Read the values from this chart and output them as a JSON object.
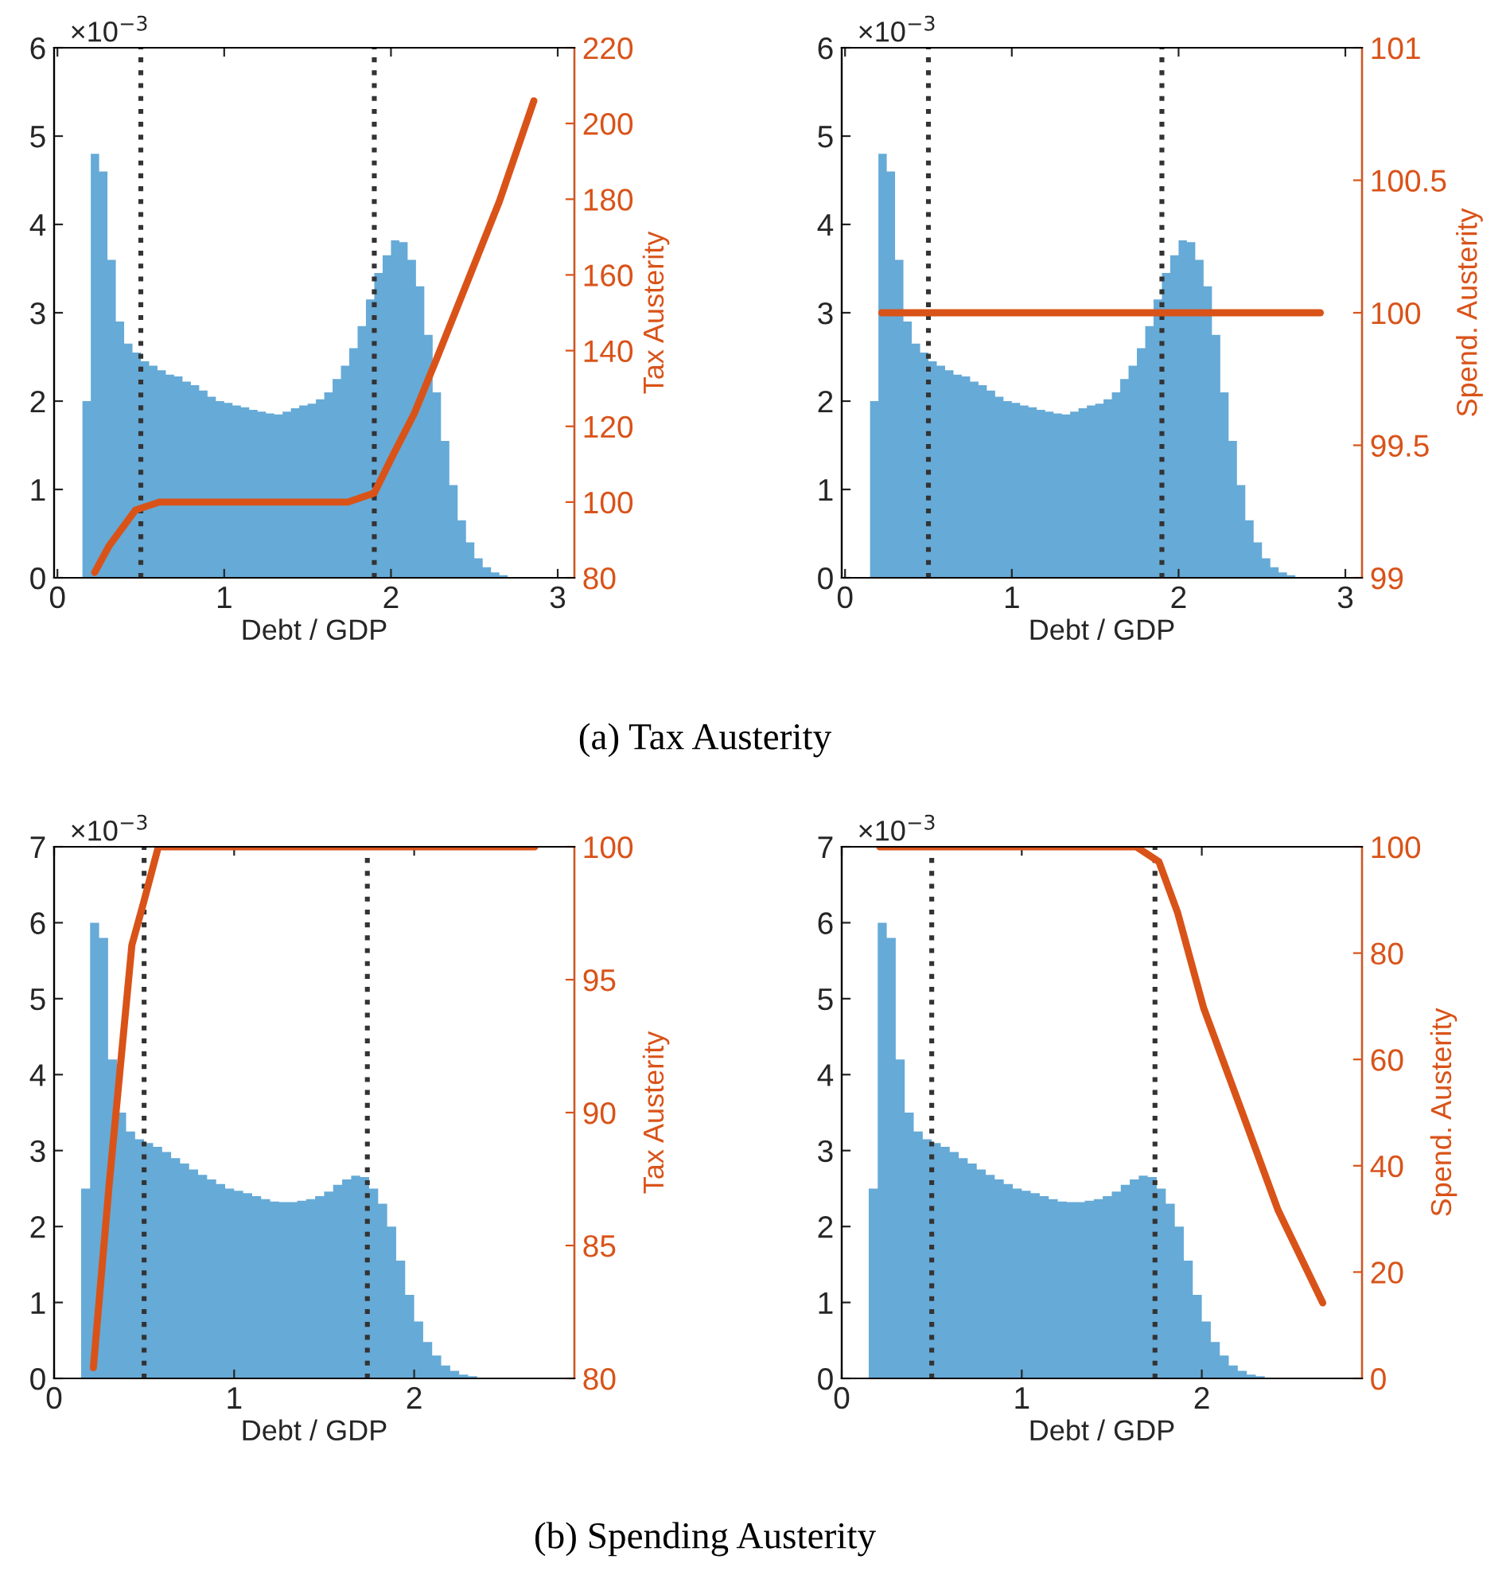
{
  "chart_data": [
    {
      "type": "histogram",
      "xlabel": "Debt / GDP",
      "y2label": "Tax Austerity",
      "xlim": [
        -0.02,
        3.1
      ],
      "xticks": [
        0,
        1,
        2,
        3
      ],
      "ylim": [
        0,
        6
      ],
      "yticks": [
        0,
        1,
        2,
        3,
        4,
        5,
        6
      ],
      "y2lim": [
        80,
        220
      ],
      "y2ticks": [
        80,
        100,
        120,
        140,
        160,
        180,
        200,
        220
      ],
      "annotations": [
        "×10$^{−3}$",
        "(a) Tax Austerity"
      ],
      "ref_lines": [
        {
          "axis": "x",
          "value": 0.5,
          "color": "#333333",
          "line_style": "dotted"
        },
        {
          "axis": "x",
          "value": 1.9,
          "color": "#333333",
          "line_style": "dotted"
        }
      ],
      "series": [
        {
          "type": "histogram",
          "color": "#66aad7",
          "bins": [
            0.15,
            0.2,
            0.25,
            0.3,
            0.35,
            0.4,
            0.45,
            0.5,
            0.55,
            0.6,
            0.65,
            0.7,
            0.75,
            0.8,
            0.85,
            0.9,
            0.95,
            1.0,
            1.05,
            1.1,
            1.15,
            1.2,
            1.25,
            1.3,
            1.35,
            1.4,
            1.45,
            1.5,
            1.55,
            1.6,
            1.65,
            1.7,
            1.75,
            1.8,
            1.85,
            1.9,
            1.95,
            2.0,
            2.05,
            2.1,
            2.15,
            2.2,
            2.25,
            2.3,
            2.35,
            2.4,
            2.45,
            2.5,
            2.55,
            2.6,
            2.65,
            2.7,
            2.75
          ],
          "values": [
            2.0,
            4.8,
            4.6,
            3.6,
            2.9,
            2.65,
            2.55,
            2.45,
            2.4,
            2.35,
            2.3,
            2.28,
            2.22,
            2.18,
            2.12,
            2.05,
            2.0,
            1.98,
            1.95,
            1.93,
            1.9,
            1.88,
            1.86,
            1.85,
            1.88,
            1.92,
            1.95,
            1.97,
            2.02,
            2.1,
            2.25,
            2.4,
            2.6,
            2.85,
            3.15,
            3.45,
            3.65,
            3.82,
            3.8,
            3.6,
            3.3,
            2.75,
            2.1,
            1.55,
            1.05,
            0.65,
            0.4,
            0.22,
            0.12,
            0.06,
            0.03,
            0.01
          ]
        },
        {
          "type": "line",
          "axis": "y2",
          "color": "#d95319",
          "x": [
            0.223,
            0.309,
            0.468,
            0.611,
            1.742,
            1.9,
            2.01,
            2.14,
            2.27,
            2.46,
            2.65,
            2.857
          ],
          "values": [
            81.4,
            88.4,
            97.9,
            100,
            100,
            102.4,
            112.2,
            123.4,
            137.4,
            158.4,
            179.4,
            206
          ]
        }
      ]
    },
    {
      "type": "histogram",
      "xlabel": "Debt / GDP",
      "y2label": "Spend. Austerity",
      "xlim": [
        -0.02,
        3.1
      ],
      "xticks": [
        0,
        1,
        2,
        3
      ],
      "ylim": [
        0,
        6
      ],
      "yticks": [
        0,
        1,
        2,
        3,
        4,
        5,
        6
      ],
      "y2lim": [
        99,
        101
      ],
      "y2ticks": [
        99,
        99.5,
        100,
        100.5,
        101
      ],
      "annotations": [
        "×10$^{−3}$"
      ],
      "ref_lines": [
        {
          "axis": "x",
          "value": 0.5,
          "color": "#333333",
          "line_style": "dotted"
        },
        {
          "axis": "x",
          "value": 1.9,
          "color": "#333333",
          "line_style": "dotted"
        }
      ],
      "series": [
        {
          "type": "histogram",
          "color": "#66aad7",
          "bins": [
            0.15,
            0.2,
            0.25,
            0.3,
            0.35,
            0.4,
            0.45,
            0.5,
            0.55,
            0.6,
            0.65,
            0.7,
            0.75,
            0.8,
            0.85,
            0.9,
            0.95,
            1.0,
            1.05,
            1.1,
            1.15,
            1.2,
            1.25,
            1.3,
            1.35,
            1.4,
            1.45,
            1.5,
            1.55,
            1.6,
            1.65,
            1.7,
            1.75,
            1.8,
            1.85,
            1.9,
            1.95,
            2.0,
            2.05,
            2.1,
            2.15,
            2.2,
            2.25,
            2.3,
            2.35,
            2.4,
            2.45,
            2.5,
            2.55,
            2.6,
            2.65,
            2.7,
            2.75
          ],
          "values": [
            2.0,
            4.8,
            4.6,
            3.6,
            2.9,
            2.65,
            2.55,
            2.45,
            2.4,
            2.35,
            2.3,
            2.28,
            2.22,
            2.18,
            2.12,
            2.05,
            2.0,
            1.98,
            1.95,
            1.93,
            1.9,
            1.88,
            1.86,
            1.85,
            1.88,
            1.92,
            1.95,
            1.97,
            2.02,
            2.1,
            2.25,
            2.4,
            2.6,
            2.85,
            3.15,
            3.45,
            3.65,
            3.82,
            3.8,
            3.6,
            3.3,
            2.75,
            2.1,
            1.55,
            1.05,
            0.65,
            0.4,
            0.22,
            0.12,
            0.06,
            0.03,
            0.01
          ]
        },
        {
          "type": "line",
          "axis": "y2",
          "color": "#d95319",
          "x": [
            0.22,
            2.85
          ],
          "values": [
            100,
            100
          ]
        }
      ]
    },
    {
      "type": "histogram",
      "xlabel": "Debt / GDP",
      "y2label": "Tax Austerity",
      "xlim": [
        0,
        2.89
      ],
      "xticks": [
        0,
        1,
        2
      ],
      "ylim": [
        0,
        7
      ],
      "yticks": [
        0,
        1,
        2,
        3,
        4,
        5,
        6,
        7
      ],
      "y2lim": [
        80,
        100
      ],
      "y2ticks": [
        80,
        85,
        90,
        95,
        100
      ],
      "annotations": [
        "×10$^{−3}$",
        "(b) Spending Austerity"
      ],
      "ref_lines": [
        {
          "axis": "x",
          "value": 0.5,
          "color": "#333333",
          "line_style": "dotted"
        },
        {
          "axis": "x",
          "value": 1.74,
          "color": "#333333",
          "line_style": "dotted"
        }
      ],
      "series": [
        {
          "type": "histogram",
          "color": "#66aad7",
          "bins": [
            0.15,
            0.2,
            0.25,
            0.3,
            0.35,
            0.4,
            0.45,
            0.5,
            0.55,
            0.6,
            0.65,
            0.7,
            0.75,
            0.8,
            0.85,
            0.9,
            0.95,
            1.0,
            1.05,
            1.1,
            1.15,
            1.2,
            1.25,
            1.3,
            1.35,
            1.4,
            1.45,
            1.5,
            1.55,
            1.6,
            1.65,
            1.7,
            1.75,
            1.8,
            1.85,
            1.9,
            1.95,
            2.0,
            2.05,
            2.1,
            2.15,
            2.2,
            2.25,
            2.3,
            2.35,
            2.4
          ],
          "values": [
            2.5,
            6.0,
            5.8,
            4.2,
            3.5,
            3.25,
            3.15,
            3.1,
            3.05,
            2.98,
            2.9,
            2.83,
            2.75,
            2.68,
            2.62,
            2.56,
            2.5,
            2.47,
            2.44,
            2.4,
            2.36,
            2.33,
            2.32,
            2.32,
            2.34,
            2.36,
            2.4,
            2.46,
            2.55,
            2.62,
            2.67,
            2.65,
            2.5,
            2.3,
            2.0,
            1.55,
            1.1,
            0.75,
            0.48,
            0.3,
            0.17,
            0.1,
            0.05,
            0.03,
            0.01
          ]
        },
        {
          "type": "line",
          "axis": "y2",
          "color": "#d95319",
          "x": [
            0.218,
            0.306,
            0.432,
            0.497,
            0.579,
            2.67
          ],
          "values": [
            80.4,
            87.3,
            96.3,
            97.9,
            100,
            100
          ]
        }
      ]
    },
    {
      "type": "histogram",
      "xlabel": "Debt / GDP",
      "y2label": "Spend. Austerity",
      "xlim": [
        0,
        2.89
      ],
      "xticks": [
        0,
        1,
        2
      ],
      "ylim": [
        0,
        7
      ],
      "yticks": [
        0,
        1,
        2,
        3,
        4,
        5,
        6,
        7
      ],
      "y2lim": [
        0,
        100
      ],
      "y2ticks": [
        0,
        20,
        40,
        60,
        80,
        100
      ],
      "annotations": [
        "×10$^{−3}$"
      ],
      "ref_lines": [
        {
          "axis": "x",
          "value": 0.5,
          "color": "#333333",
          "line_style": "dotted"
        },
        {
          "axis": "x",
          "value": 1.74,
          "color": "#333333",
          "line_style": "dotted"
        }
      ],
      "series": [
        {
          "type": "histogram",
          "color": "#66aad7",
          "bins": [
            0.15,
            0.2,
            0.25,
            0.3,
            0.35,
            0.4,
            0.45,
            0.5,
            0.55,
            0.6,
            0.65,
            0.7,
            0.75,
            0.8,
            0.85,
            0.9,
            0.95,
            1.0,
            1.05,
            1.1,
            1.15,
            1.2,
            1.25,
            1.3,
            1.35,
            1.4,
            1.45,
            1.5,
            1.55,
            1.6,
            1.65,
            1.7,
            1.75,
            1.8,
            1.85,
            1.9,
            1.95,
            2.0,
            2.05,
            2.1,
            2.15,
            2.2,
            2.25,
            2.3,
            2.35,
            2.4
          ],
          "values": [
            2.5,
            6.0,
            5.8,
            4.2,
            3.5,
            3.25,
            3.15,
            3.1,
            3.05,
            2.98,
            2.9,
            2.83,
            2.75,
            2.68,
            2.62,
            2.56,
            2.5,
            2.47,
            2.44,
            2.4,
            2.36,
            2.33,
            2.32,
            2.32,
            2.34,
            2.36,
            2.4,
            2.46,
            2.55,
            2.62,
            2.67,
            2.65,
            2.5,
            2.3,
            2.0,
            1.55,
            1.1,
            0.75,
            0.48,
            0.3,
            0.17,
            0.1,
            0.05,
            0.03,
            0.01
          ]
        },
        {
          "type": "line",
          "axis": "y2",
          "color": "#d95319",
          "x": [
            0.211,
            1.636,
            1.762,
            1.865,
            2.01,
            2.217,
            2.423,
            2.672
          ],
          "values": [
            100,
            100,
            97.2,
            87.7,
            69.7,
            50.7,
            31.7,
            14.2
          ]
        }
      ]
    }
  ]
}
